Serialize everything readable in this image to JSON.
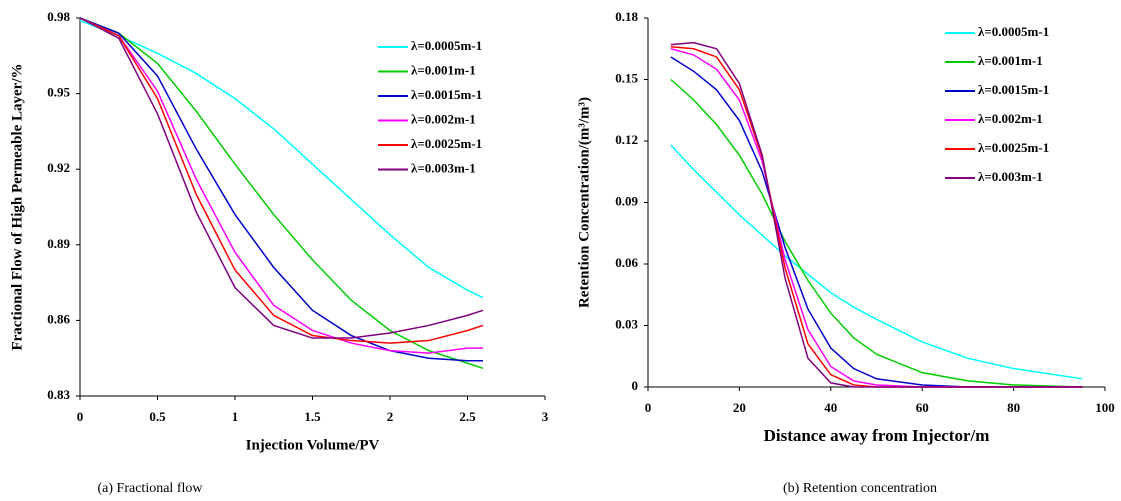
{
  "chart_data": [
    {
      "type": "line",
      "caption": "(a) Fractional flow",
      "xlabel": "Injection Volume/PV",
      "ylabel": "Fractional Flow of High Permeable Layer/%",
      "x": [
        0,
        0.25,
        0.5,
        0.75,
        1,
        1.25,
        1.5,
        1.75,
        2,
        2.25,
        2.5,
        2.6
      ],
      "xlim": [
        0,
        3
      ],
      "xticks": [
        0,
        0.5,
        1,
        1.5,
        2,
        2.5,
        3
      ],
      "ylim": [
        0.83,
        0.98
      ],
      "yticks": [
        0.83,
        0.86,
        0.89,
        0.92,
        0.95,
        0.98
      ],
      "legend": "upper right",
      "series": [
        {
          "name": "λ=0.0005m-1",
          "color": "#00ffff",
          "values": [
            0.979,
            0.973,
            0.966,
            0.958,
            0.948,
            0.936,
            0.922,
            0.908,
            0.894,
            0.881,
            0.872,
            0.869
          ]
        },
        {
          "name": "λ=0.001m-1",
          "color": "#00cc00",
          "values": [
            0.98,
            0.974,
            0.962,
            0.943,
            0.922,
            0.902,
            0.884,
            0.868,
            0.856,
            0.848,
            0.843,
            0.841
          ]
        },
        {
          "name": "λ=0.0015m-1",
          "color": "#0000cc",
          "values": [
            0.98,
            0.974,
            0.957,
            0.928,
            0.902,
            0.881,
            0.864,
            0.854,
            0.848,
            0.845,
            0.844,
            0.844
          ]
        },
        {
          "name": "λ=0.002m-1",
          "color": "#ff00ff",
          "values": [
            0.98,
            0.973,
            0.951,
            0.916,
            0.887,
            0.866,
            0.856,
            0.851,
            0.848,
            0.847,
            0.849,
            0.849
          ]
        },
        {
          "name": "λ=0.0025m-1",
          "color": "#ff0000",
          "values": [
            0.98,
            0.973,
            0.948,
            0.91,
            0.88,
            0.862,
            0.854,
            0.852,
            0.851,
            0.852,
            0.856,
            0.858
          ]
        },
        {
          "name": "λ=0.003m-1",
          "color": "#800080",
          "values": [
            0.98,
            0.972,
            0.942,
            0.903,
            0.873,
            0.858,
            0.853,
            0.853,
            0.855,
            0.858,
            0.862,
            0.864
          ]
        }
      ]
    },
    {
      "type": "line",
      "caption": "(b) Retention concentration",
      "xlabel": "Distance away from Injector/m",
      "ylabel": "Retention Concentration/(m³/m³)",
      "x": [
        5,
        10,
        15,
        20,
        25,
        30,
        35,
        40,
        45,
        50,
        60,
        70,
        80,
        95
      ],
      "xlim": [
        0,
        100
      ],
      "xticks": [
        0,
        20,
        40,
        60,
        80,
        100
      ],
      "ylim": [
        0,
        0.18
      ],
      "yticks": [
        0,
        0.03,
        0.06,
        0.09,
        0.12,
        0.15,
        0.18
      ],
      "legend": "upper right",
      "series": [
        {
          "name": "λ=0.0005m-1",
          "color": "#00ffff",
          "values": [
            0.118,
            0.106,
            0.095,
            0.084,
            0.074,
            0.064,
            0.055,
            0.046,
            0.039,
            0.033,
            0.022,
            0.014,
            0.009,
            0.004
          ]
        },
        {
          "name": "λ=0.001m-1",
          "color": "#00cc00",
          "values": [
            0.15,
            0.14,
            0.128,
            0.113,
            0.094,
            0.071,
            0.052,
            0.036,
            0.024,
            0.016,
            0.007,
            0.003,
            0.001,
            0
          ]
        },
        {
          "name": "λ=0.0015m-1",
          "color": "#0000cc",
          "values": [
            0.161,
            0.154,
            0.145,
            0.13,
            0.105,
            0.068,
            0.038,
            0.019,
            0.009,
            0.004,
            0.001,
            0,
            0,
            0
          ]
        },
        {
          "name": "λ=0.002m-1",
          "color": "#ff00ff",
          "values": [
            0.165,
            0.162,
            0.155,
            0.14,
            0.11,
            0.062,
            0.028,
            0.01,
            0.003,
            0.001,
            0,
            0,
            0,
            0
          ]
        },
        {
          "name": "λ=0.0025m-1",
          "color": "#ff0000",
          "values": [
            0.166,
            0.165,
            0.161,
            0.145,
            0.112,
            0.058,
            0.021,
            0.006,
            0.001,
            0,
            0,
            0,
            0,
            0
          ]
        },
        {
          "name": "λ=0.003m-1",
          "color": "#800080",
          "values": [
            0.167,
            0.168,
            0.165,
            0.148,
            0.113,
            0.053,
            0.014,
            0.002,
            0,
            0,
            0,
            0,
            0,
            0
          ]
        }
      ]
    }
  ]
}
